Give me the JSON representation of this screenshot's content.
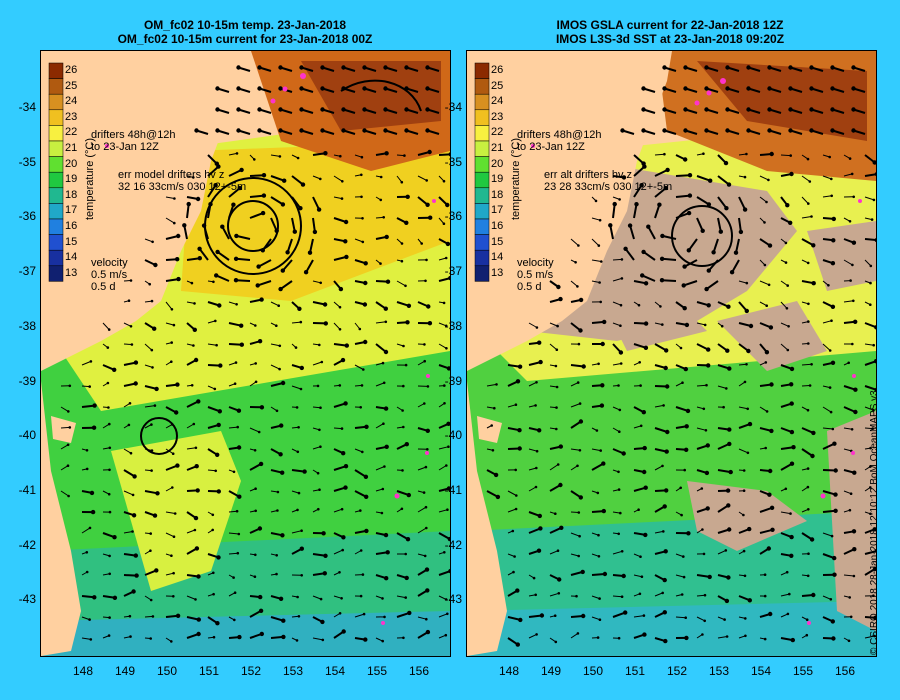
{
  "left_panel": {
    "title_line1": "OM_fc02 10-15m temp. 23-Jan-2018",
    "title_line2": "OM_fc02 10-15m current for 23-Jan-2018 00Z",
    "drifter_label": "drifters 48h@12h",
    "drifter_date": "to 23-Jan 12Z",
    "err_label": "err model drifters hv z",
    "err_values": "32 16 33cm/s 030 12+-5m",
    "velocity_label": "velocity",
    "velocity_scale": "0.5 m/s",
    "velocity_time": "0.5 d"
  },
  "right_panel": {
    "title_line1": "IMOS GSLA current for 22-Jan-2018 12Z",
    "title_line2": "IMOS L3S-3d SST at 23-Jan-2018 09:20Z",
    "drifter_label": "drifters 48h@12h",
    "drifter_date": "to 23-Jan 12Z",
    "err_label": "err alt drifters hv z",
    "err_values": "23 28 33cm/s 030 12+-5m",
    "velocity_label": "velocity",
    "velocity_scale": "0.5 m/s",
    "velocity_time": "0.5 d"
  },
  "colorbar": {
    "label": "temperature (°C)",
    "ticks": [
      "26",
      "25",
      "24",
      "23",
      "22",
      "21",
      "20",
      "19",
      "18",
      "17",
      "16",
      "15",
      "14",
      "13"
    ],
    "colors": [
      "#8b2a00",
      "#b05a10",
      "#d89020",
      "#f0c020",
      "#f8f040",
      "#c8f040",
      "#60e030",
      "#20c840",
      "#20b890",
      "#20a8c8",
      "#2080e0",
      "#2050d0",
      "#1830a0",
      "#102070"
    ]
  },
  "y_axis_labels": [
    "-34",
    "-35",
    "-36",
    "-37",
    "-38",
    "-39",
    "-40",
    "-41",
    "-42",
    "-43"
  ],
  "x_axis_labels": [
    "148",
    "149",
    "150",
    "151",
    "152",
    "153",
    "154",
    "155",
    "156"
  ],
  "credit": "© CSIRO 2018   28-Jan-2018 12:10:12 BoM OceanMAPS v3",
  "colors": {
    "background": "#33ccff",
    "land": "#ffd0a0",
    "cloud_mask": "#c8a890",
    "drifter": "#ff33cc"
  }
}
